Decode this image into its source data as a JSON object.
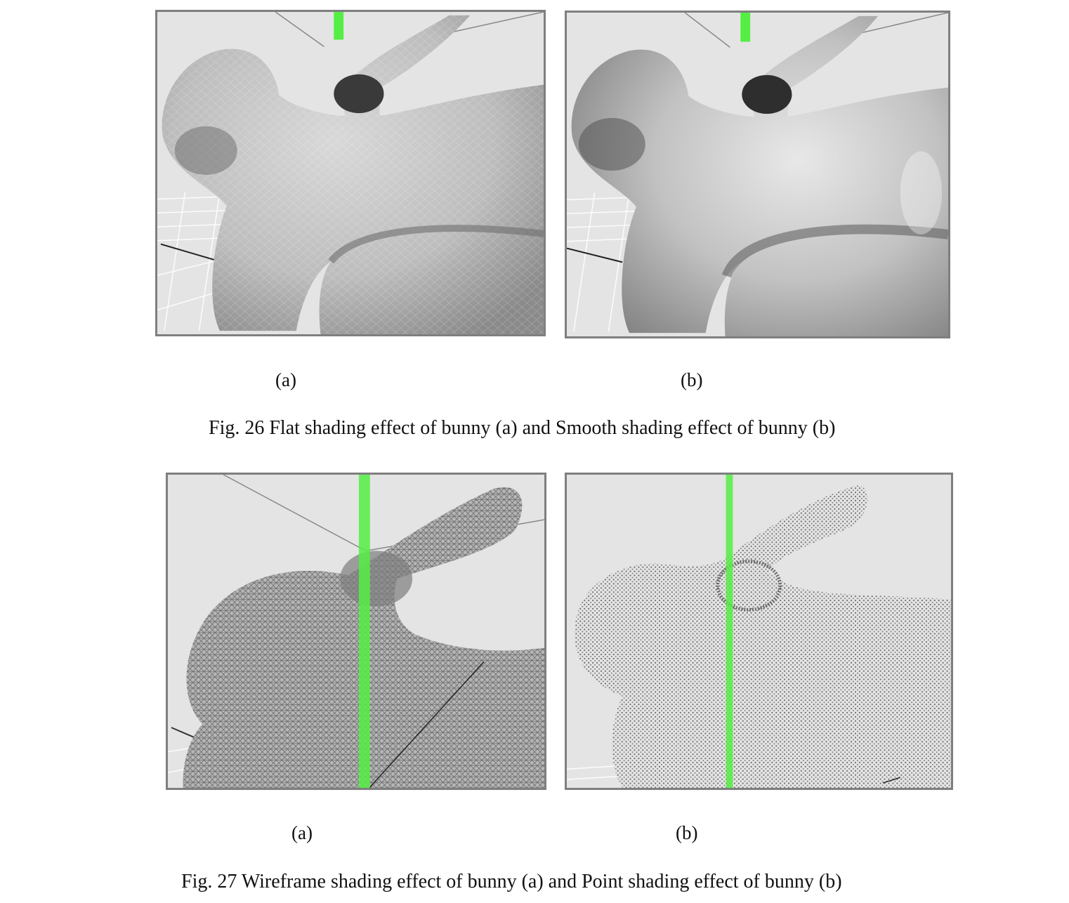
{
  "figures": [
    {
      "caption": "Fig. 26 Flat shading effect of bunny (a) and Smooth shading effect of bunny (b)",
      "panels": [
        {
          "label": "(a)",
          "mode": "flat"
        },
        {
          "label": "(b)",
          "mode": "smooth"
        }
      ]
    },
    {
      "caption": "Fig. 27 Wireframe shading effect of bunny (a) and Point shading effect of bunny (b)",
      "panels": [
        {
          "label": "(a)",
          "mode": "wireframe"
        },
        {
          "label": "(b)",
          "mode": "point"
        }
      ]
    }
  ],
  "colors": {
    "viewport_bg": "#e4e4e4",
    "frame": "#7f7f7f",
    "y_axis": "#55ee44",
    "mesh": "#8a8a8a"
  }
}
